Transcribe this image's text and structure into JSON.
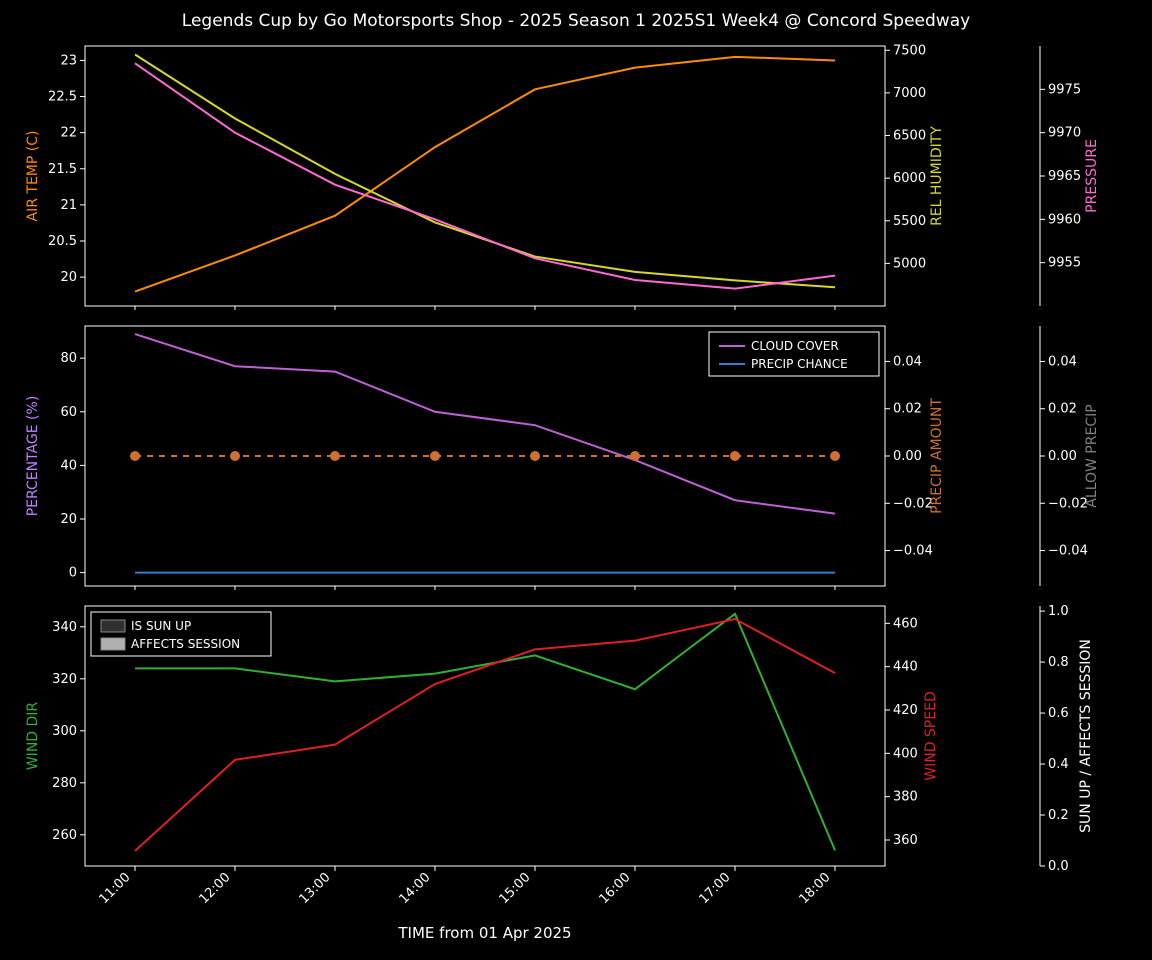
{
  "title": "Legends Cup by Go Motorsports Shop - 2025 Season 1 2025S1 Week4 @ Concord Speedway",
  "title_fontsize": 17,
  "background_color": "#000000",
  "panel_face_color": "#000000",
  "spine_color": "#ffffff",
  "tick_color": "#ffffff",
  "font_family": "DejaVu Sans",
  "x": {
    "label": "TIME from 01 Apr 2025",
    "label_color": "#ffffff",
    "label_fontsize": 15,
    "ticks": [
      "11:00",
      "12:00",
      "13:00",
      "14:00",
      "15:00",
      "16:00",
      "17:00",
      "18:00"
    ],
    "tick_rotation": 45
  },
  "panel1": {
    "air_temp": {
      "label": "AIR TEMP (C)",
      "color": "#ff8c00",
      "values": [
        19.8,
        20.3,
        20.85,
        21.8,
        22.6,
        22.9,
        23.05,
        23.0
      ],
      "ymin": 19.6,
      "ymax": 23.2,
      "ticks": [
        20.0,
        20.5,
        21.0,
        21.5,
        22.0,
        22.5,
        23.0
      ]
    },
    "rel_humidity": {
      "label": "REL HUMIDITY",
      "color": "#d8d820",
      "values": [
        7450,
        6700,
        6050,
        5480,
        5080,
        4900,
        4800,
        4720
      ],
      "ymin": 4500,
      "ymax": 7550,
      "ticks": [
        5000,
        5500,
        6000,
        6500,
        7000,
        7500
      ]
    },
    "pressure": {
      "label": "PRESSURE",
      "color": "#ff69d4",
      "values": [
        9978,
        9970,
        9964,
        9960,
        9955.5,
        9953,
        9952,
        9953.5
      ],
      "ymin": 9950,
      "ymax": 9980,
      "ticks": [
        9955,
        9960,
        9965,
        9970,
        9975
      ]
    }
  },
  "panel2": {
    "percentage": {
      "label": "PERCENTAGE (%)",
      "color": "#c080ff",
      "ymin": -5,
      "ymax": 92,
      "ticks": [
        0,
        20,
        40,
        60,
        80
      ]
    },
    "cloud_cover": {
      "legend": "CLOUD COVER",
      "color": "#c060d8",
      "values": [
        89,
        77,
        75,
        60,
        55,
        42,
        27,
        22
      ]
    },
    "precip_chance": {
      "legend": "PRECIP CHANCE",
      "color": "#3080d0",
      "values": [
        0,
        0,
        0,
        0,
        0,
        0,
        0,
        0
      ]
    },
    "precip_amount": {
      "label": "PRECIP AMOUNT",
      "color": "#d07030",
      "ymin": -0.055,
      "ymax": 0.055,
      "ticks": [
        -0.04,
        -0.02,
        0.0,
        0.02,
        0.04
      ],
      "values": [
        0,
        0,
        0,
        0,
        0,
        0,
        0,
        0
      ],
      "marker": "circle",
      "marker_size": 5,
      "dash": "6,6"
    },
    "allow_precip": {
      "label": "ALLOW PRECIP",
      "color": "#808080",
      "ymin": -0.055,
      "ymax": 0.055,
      "ticks": [
        -0.04,
        -0.02,
        0.0,
        0.02,
        0.04
      ]
    }
  },
  "panel3": {
    "wind_dir": {
      "label": "WIND DIR",
      "color": "#30b030",
      "values": [
        324,
        324,
        319,
        322,
        329,
        316,
        345,
        254
      ],
      "ymin": 248,
      "ymax": 348,
      "ticks": [
        260,
        280,
        300,
        320,
        340
      ]
    },
    "wind_speed": {
      "label": "WIND SPEED",
      "color": "#e02020",
      "values": [
        355,
        397,
        404,
        432,
        448,
        452,
        462,
        437
      ],
      "ymin": 348,
      "ymax": 468,
      "ticks": [
        360,
        380,
        400,
        420,
        440,
        460
      ]
    },
    "sun_up": {
      "label": "SUN UP / AFFECTS SESSION",
      "color": "#ffffff",
      "ymin": 0.0,
      "ymax": 1.02,
      "ticks": [
        0.0,
        0.2,
        0.4,
        0.6,
        0.8,
        1.0
      ]
    },
    "shade": {
      "is_sun_up": {
        "legend": "IS SUN UP",
        "color": "#303030",
        "from_idx": 0,
        "to_idx": 8
      },
      "affects": {
        "legend": "AFFECTS SESSION",
        "color": "#b0b0b0",
        "from_idx": 6,
        "to_idx": 8
      }
    }
  }
}
